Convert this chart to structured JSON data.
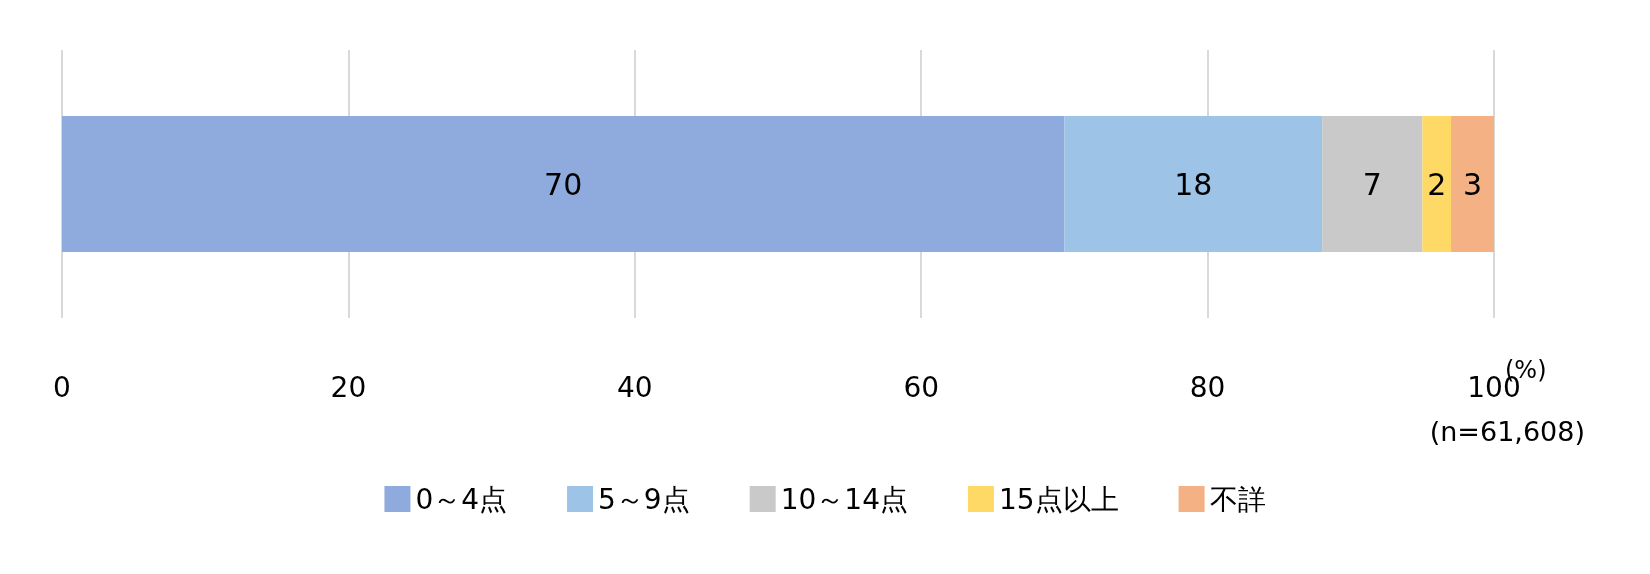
{
  "chart_data": {
    "type": "bar",
    "orientation": "horizontal",
    "stacked": true,
    "categories": [
      null
    ],
    "series": [
      {
        "name": "0～4点",
        "color": "#8faadc",
        "values": [
          70
        ]
      },
      {
        "name": "5～9点",
        "color": "#9dc3e6",
        "values": [
          18
        ]
      },
      {
        "name": "10～14点",
        "color": "#c9c9c9",
        "values": [
          7
        ]
      },
      {
        "name": "15点以上",
        "color": "#ffd966",
        "values": [
          2
        ]
      },
      {
        "name": "不詳",
        "color": "#f4b183",
        "values": [
          3
        ]
      }
    ],
    "xlim": [
      0,
      100
    ],
    "xticks": [
      0,
      20,
      40,
      60,
      80,
      100
    ],
    "grid": "x",
    "legend": "bottom",
    "data_labels": true,
    "annotations": [
      "(%)",
      "(n=61,608)"
    ]
  }
}
